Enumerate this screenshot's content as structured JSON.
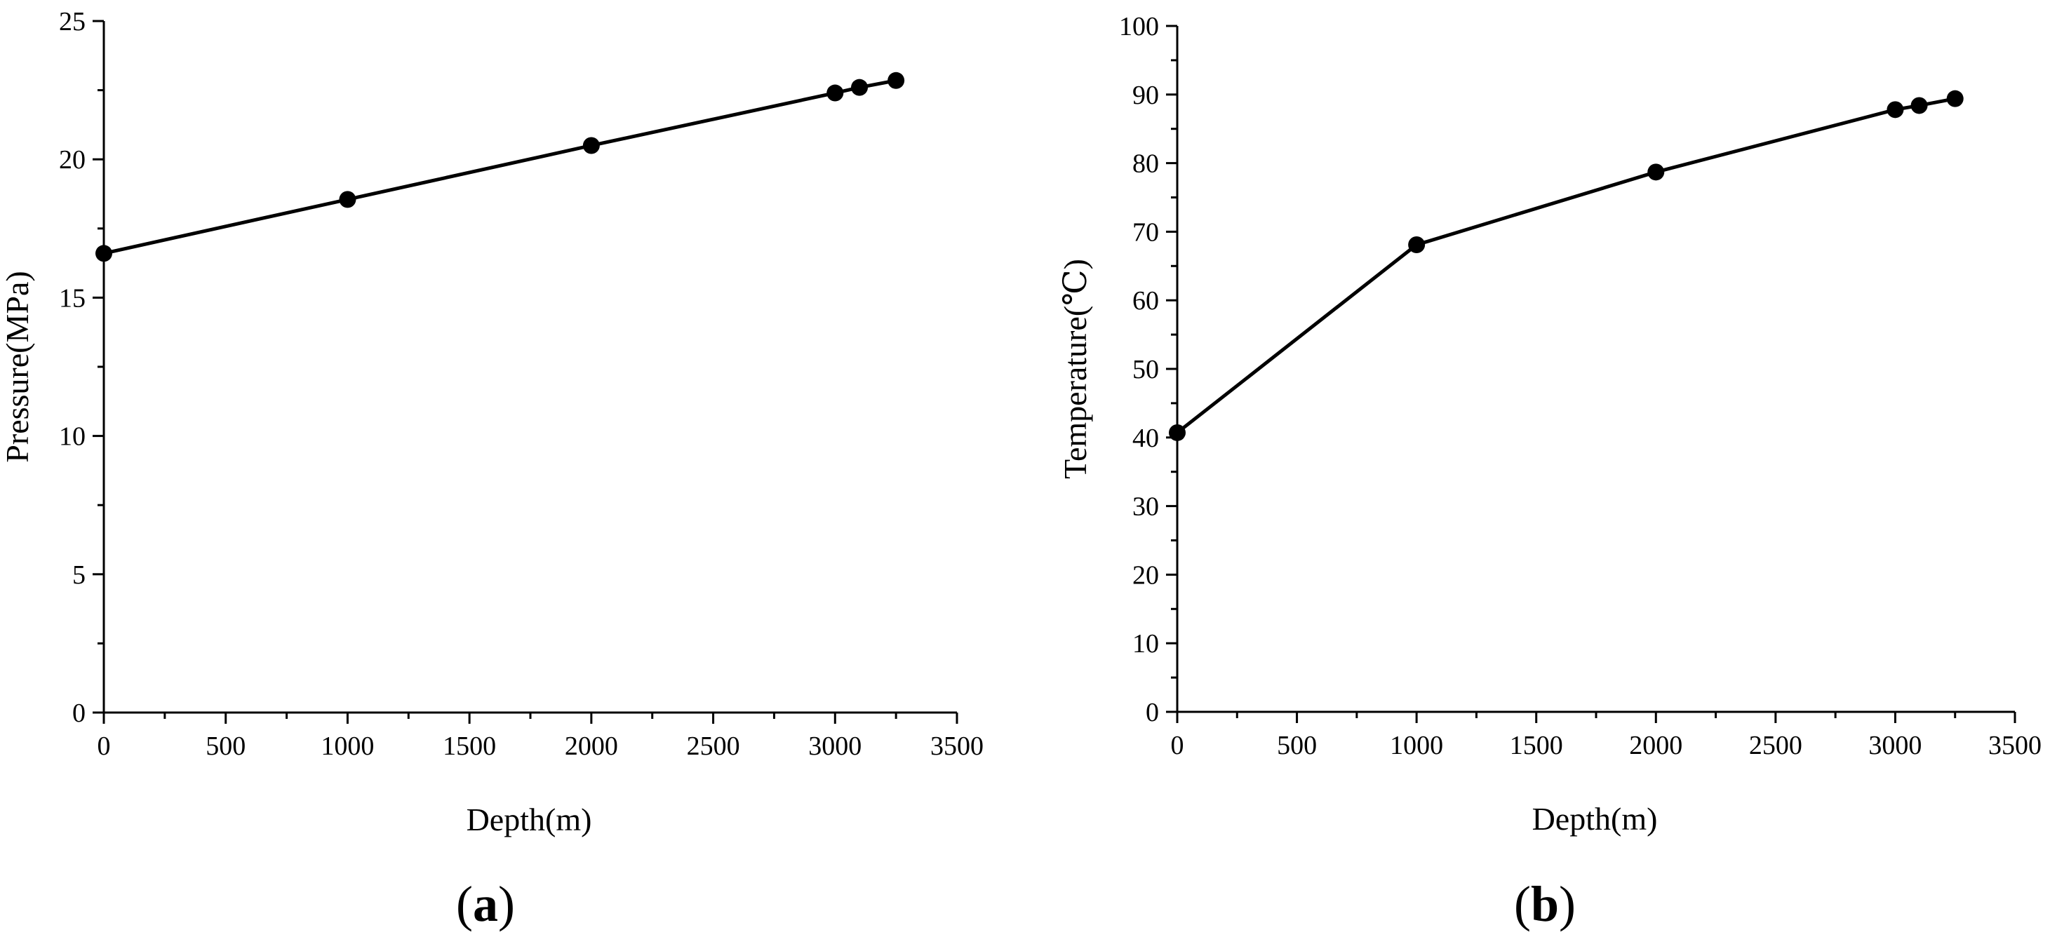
{
  "chart_data": [
    {
      "type": "line",
      "panel": "a",
      "xlabel": "Depth(m)",
      "ylabel": "Pressure(MPa)",
      "xlim": [
        0,
        3500
      ],
      "ylim": [
        0,
        25
      ],
      "xticks": [
        0,
        500,
        1000,
        1500,
        2000,
        2500,
        3000,
        3500
      ],
      "yticks": [
        0,
        5,
        10,
        15,
        20,
        25
      ],
      "x": [
        0,
        1000,
        2000,
        3000,
        3100,
        3250
      ],
      "y": [
        16.6,
        18.55,
        20.5,
        22.4,
        22.6,
        22.85
      ],
      "grid": false,
      "marker": "filled-circle",
      "color": "#000000"
    },
    {
      "type": "line",
      "panel": "b",
      "xlabel": "Depth(m)",
      "ylabel": "Temperature(℃)",
      "xlim": [
        0,
        3500
      ],
      "ylim": [
        0,
        100
      ],
      "xticks": [
        0,
        500,
        1000,
        1500,
        2000,
        2500,
        3000,
        3500
      ],
      "yticks": [
        0,
        10,
        20,
        30,
        40,
        50,
        60,
        70,
        80,
        90,
        100
      ],
      "x": [
        0,
        1000,
        2000,
        3000,
        3100,
        3250
      ],
      "y": [
        40.7,
        68.1,
        78.7,
        87.8,
        88.4,
        89.4
      ],
      "grid": false,
      "marker": "filled-circle",
      "color": "#000000"
    }
  ],
  "panel_labels": {
    "a": "a",
    "b": "b",
    "open": "(",
    "close": ")"
  }
}
